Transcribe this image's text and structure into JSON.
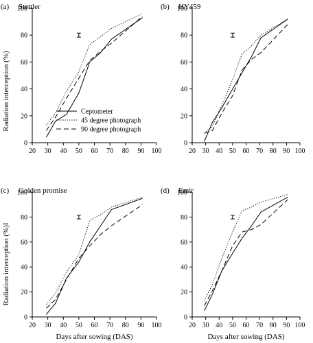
{
  "figure": {
    "shared_xlabel": "Days after sowing (DAS)",
    "shared_ylabel_top": "Radiation interception (%)",
    "shared_ylabel_bottom": "Radiation interception (%)I"
  },
  "legend": {
    "entries": [
      {
        "name": "Ceptometer",
        "style": "solid"
      },
      {
        "name": "45 degree photograph",
        "style": "dotted"
      },
      {
        "name": "90 degree photograph",
        "style": "dashed"
      }
    ]
  },
  "chart_data": [
    {
      "type": "line",
      "panel": "(a)",
      "title": "Stettler",
      "xlabel": "",
      "ylabel": "Radiation interception (%)",
      "xlim": [
        20,
        100
      ],
      "ylim": [
        0,
        100
      ],
      "xticks": [
        20,
        30,
        40,
        50,
        60,
        70,
        80,
        90,
        100
      ],
      "yticks": [
        0,
        20,
        40,
        60,
        80,
        100
      ],
      "error_bar": {
        "x": 50,
        "y": 80,
        "half_height": 1.5
      },
      "series": [
        {
          "name": "Ceptometer",
          "style": "solid",
          "x": [
            29,
            35,
            42,
            50,
            57,
            64,
            71,
            91
          ],
          "y": [
            4,
            16,
            21,
            37,
            60,
            67,
            77,
            93
          ]
        },
        {
          "name": "45 degree photograph",
          "style": "dotted",
          "x": [
            29,
            35,
            42,
            50,
            57,
            64,
            71,
            91
          ],
          "y": [
            13,
            22,
            38,
            53,
            73,
            79,
            85,
            96
          ]
        },
        {
          "name": "90 degree photograph",
          "style": "dashed",
          "x": [
            29,
            35,
            42,
            50,
            57,
            64,
            71,
            91
          ],
          "y": [
            9,
            19,
            33,
            48,
            61,
            68,
            74,
            94
          ]
        }
      ]
    },
    {
      "type": "line",
      "panel": "(b)",
      "title": "HY459",
      "xlabel": "",
      "ylabel": "",
      "xlim": [
        20,
        100
      ],
      "ylim": [
        0,
        100
      ],
      "xticks": [
        20,
        30,
        40,
        50,
        60,
        70,
        80,
        90,
        100
      ],
      "yticks": [
        0,
        20,
        40,
        60,
        80,
        100
      ],
      "error_bar": {
        "x": 50,
        "y": 80,
        "half_height": 1.5
      },
      "series": [
        {
          "name": "Ceptometer",
          "style": "solid",
          "x": [
            29,
            35,
            42,
            50,
            57,
            64,
            71,
            91
          ],
          "y": [
            1,
            15,
            26,
            40,
            52,
            64,
            78,
            92
          ]
        },
        {
          "name": "45 degree photograph",
          "style": "dotted",
          "x": [
            29,
            35,
            42,
            50,
            57,
            64,
            71,
            91
          ],
          "y": [
            7,
            12,
            28,
            47,
            66,
            72,
            80,
            92
          ]
        },
        {
          "name": "90 degree photograph",
          "style": "dashed",
          "x": [
            29,
            35,
            42,
            50,
            57,
            64,
            71,
            91
          ],
          "y": [
            7,
            9,
            22,
            35,
            54,
            62,
            67,
            88
          ]
        }
      ]
    },
    {
      "type": "line",
      "panel": "(c)",
      "title": "Golden promise",
      "xlabel": "Days after sowing (DAS)",
      "ylabel": "Radiation interception (%)I",
      "xlim": [
        20,
        100
      ],
      "ylim": [
        0,
        100
      ],
      "xticks": [
        20,
        30,
        40,
        50,
        60,
        70,
        80,
        90,
        100
      ],
      "yticks": [
        0,
        20,
        40,
        60,
        80,
        100
      ],
      "error_bar": {
        "x": 50,
        "y": 80,
        "half_height": 1.5
      },
      "series": [
        {
          "name": "Ceptometer",
          "style": "solid",
          "x": [
            29,
            35,
            42,
            50,
            57,
            64,
            71,
            91
          ],
          "y": [
            2,
            11,
            31,
            44,
            60,
            73,
            86,
            95
          ]
        },
        {
          "name": "45 degree photograph",
          "style": "dotted",
          "x": [
            29,
            35,
            42,
            50,
            57,
            64,
            71,
            91
          ],
          "y": [
            10,
            19,
            36,
            50,
            77,
            82,
            88,
            96
          ]
        },
        {
          "name": "90 degree photograph",
          "style": "dashed",
          "x": [
            29,
            35,
            42,
            50,
            57,
            64,
            71,
            91
          ],
          "y": [
            7,
            14,
            30,
            47,
            57,
            66,
            73,
            90
          ]
        }
      ]
    },
    {
      "type": "line",
      "panel": "(d)",
      "title": "Emir",
      "xlabel": "Days after sowing (DAS)",
      "ylabel": "",
      "xlim": [
        20,
        100
      ],
      "ylim": [
        0,
        100
      ],
      "xticks": [
        20,
        30,
        40,
        50,
        60,
        70,
        80,
        90,
        100
      ],
      "yticks": [
        0,
        20,
        40,
        60,
        80,
        100
      ],
      "error_bar": {
        "x": 50,
        "y": 80,
        "half_height": 1.5
      },
      "series": [
        {
          "name": "Ceptometer",
          "style": "solid",
          "x": [
            29,
            35,
            42,
            50,
            57,
            64,
            71,
            91
          ],
          "y": [
            5,
            18,
            37,
            51,
            63,
            73,
            84,
            96
          ]
        },
        {
          "name": "45 degree photograph",
          "style": "dotted",
          "x": [
            29,
            35,
            42,
            50,
            57,
            64,
            71,
            91
          ],
          "y": [
            13,
            26,
            47,
            68,
            85,
            88,
            92,
            98
          ]
        },
        {
          "name": "90 degree photograph",
          "style": "dashed",
          "x": [
            29,
            35,
            42,
            50,
            57,
            64,
            71,
            91
          ],
          "y": [
            9,
            21,
            37,
            57,
            68,
            70,
            74,
            94
          ]
        }
      ]
    }
  ]
}
